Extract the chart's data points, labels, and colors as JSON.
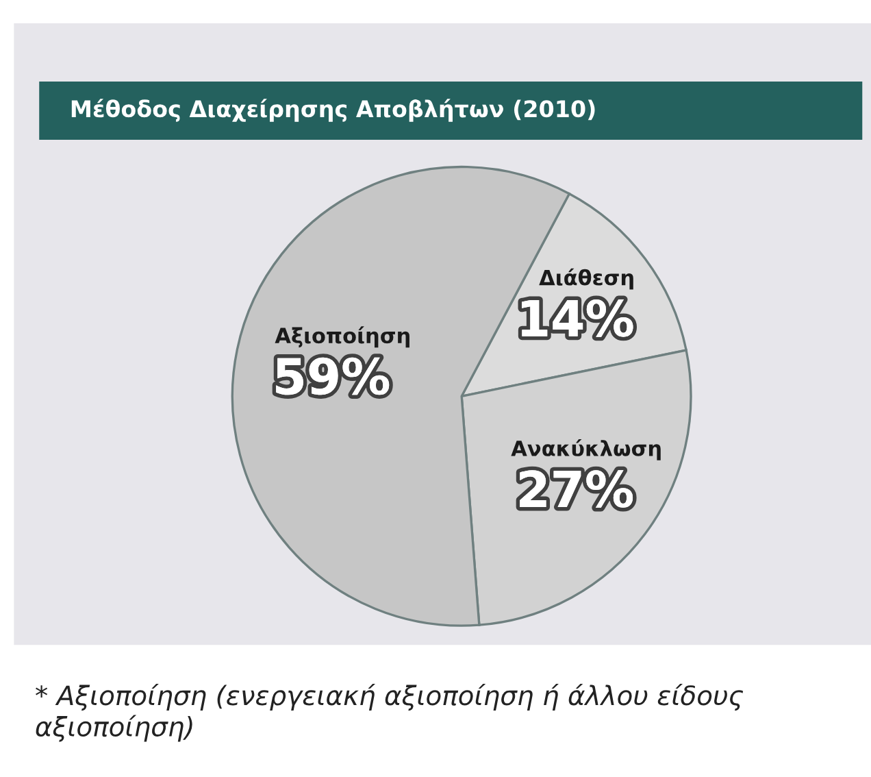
{
  "chart_data": {
    "type": "pie",
    "title": "Μέθοδος Διαχείρησης Αποβλήτων (2010)",
    "categories": [
      "Διάθεση",
      "Ανακύκλωση",
      "Αξιοποίηση"
    ],
    "values": [
      14,
      27,
      59
    ],
    "value_labels": [
      "14%",
      "27%",
      "59%"
    ],
    "colors": [
      "#dcdcdc",
      "#d2d2d2",
      "#c6c6c6"
    ],
    "annotations": [
      "* Αξιοποίηση (ενεργειακή αξιοποίηση ή άλλου είδους αξιοποίηση)"
    ]
  }
}
